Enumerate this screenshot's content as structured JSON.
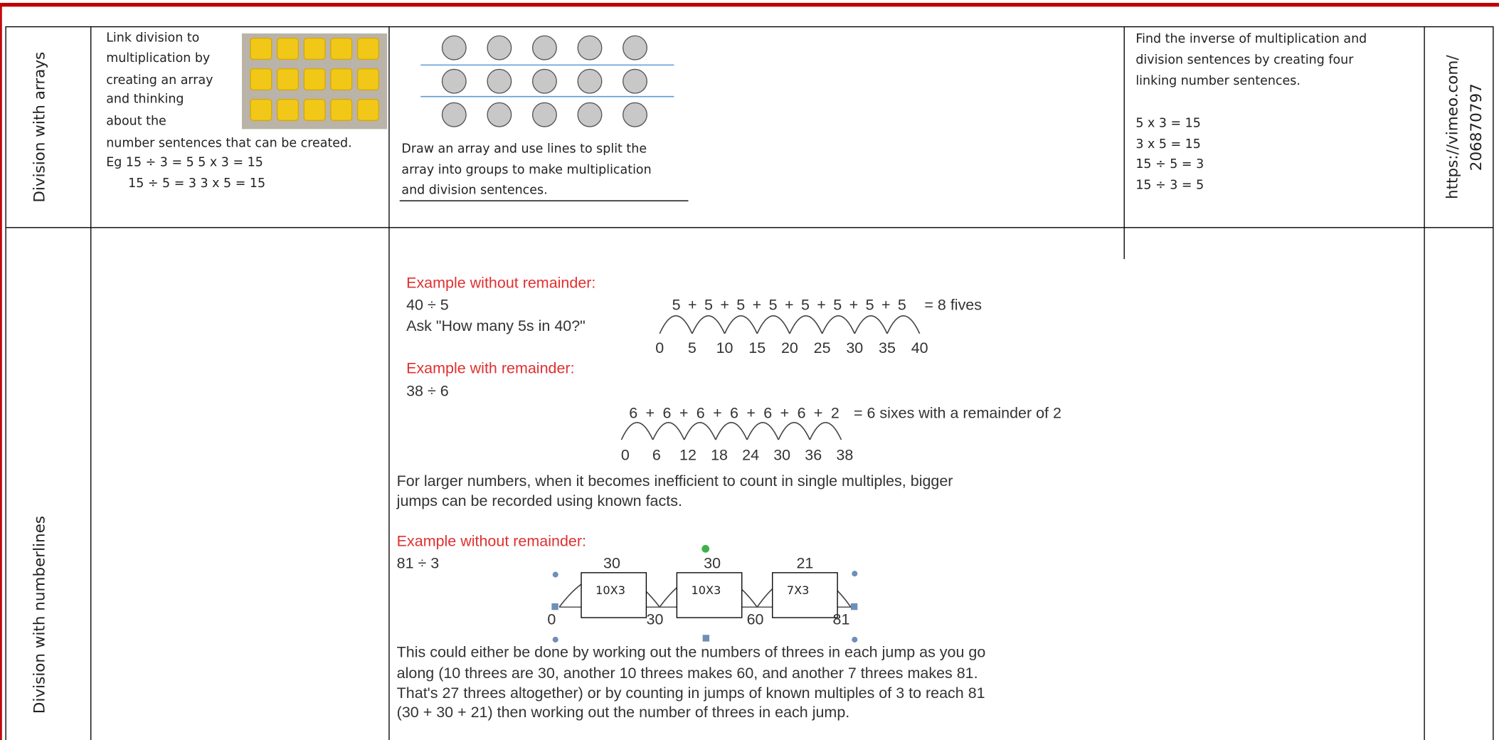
{
  "rows": [
    {
      "label": "Division with arrays",
      "description": [
        "Link division to",
        "multiplication by",
        "creating an array",
        "and thinking",
        "about the",
        "number sentences that can be created."
      ],
      "examples": [
        "Eg  15 ÷ 3 = 5     5 x 3 = 15",
        "15 ÷ 5 = 3     3 x 5 = 15"
      ],
      "representation_caption": [
        "Draw an array and use lines to split the",
        "array into groups to make multiplication",
        "and division sentences."
      ],
      "abstract": [
        "Find the inverse of multiplication and",
        "division sentences by creating four",
        "linking number sentences."
      ],
      "abstract_sentences": [
        "5 x 3 = 15",
        "3 x 5 = 15",
        "15 ÷ 5 = 3",
        "15 ÷ 3 = 5"
      ],
      "link": [
        "https://vimeo.com/",
        "206870797"
      ]
    },
    {
      "label": "Division with numberlines",
      "example_1": {
        "heading": "Example without remainder:",
        "lines": [
          "40 ÷ 5",
          "Ask \"How many 5s in 40?\""
        ],
        "jumps": "5 + 5 + 5 + 5 + 5 + 5 + 5 + 5",
        "result": "= 8 fives",
        "marks": [
          "0",
          "5",
          "10",
          "15",
          "20",
          "25",
          "30",
          "35",
          "40"
        ]
      },
      "example_2": {
        "heading": "Example with remainder:",
        "lines": [
          "38 ÷ 6"
        ],
        "jumps": "6 + 6 + 6 + 6 + 6 + 6 + 2",
        "result": "= 6 sixes with a remainder of 2",
        "marks": [
          "0",
          "6",
          "12",
          "18",
          "24",
          "30",
          "36",
          "38"
        ]
      },
      "paragraph_1": [
        "For larger numbers, when it becomes inefficient to count in single multiples, bigger",
        "jumps can be recorded using known facts."
      ],
      "example_3": {
        "heading": "Example without remainder:",
        "question": "81 ÷ 3",
        "jumps": [
          "30",
          "30",
          "21"
        ],
        "boxes": [
          "10X3",
          "10X3",
          "7X3"
        ],
        "marks": [
          "0",
          "30",
          "60",
          "81"
        ]
      },
      "paragraph_2": [
        "This could either be done by working out the numbers of threes in each jump as you go",
        "along (10 threes are 30, another 10 threes makes 60, and another 7 threes makes 81.",
        "That's 27 threes altogether) or by counting in jumps of known multiples of 3 to reach 81",
        "(30 + 30 + 21) then working out the number of threes in each jump."
      ]
    }
  ]
}
